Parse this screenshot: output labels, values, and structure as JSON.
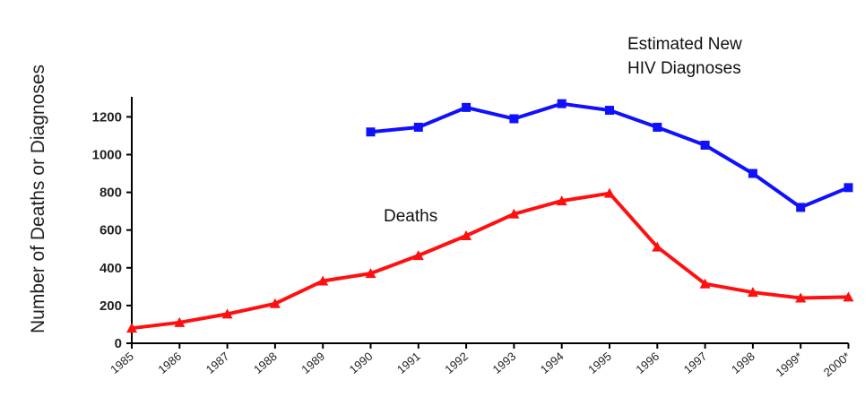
{
  "chart_data": {
    "type": "line",
    "title": "",
    "xlabel": "",
    "ylabel": "Number of Deaths or Diagnoses",
    "ylim": [
      0,
      1300
    ],
    "yticks": [
      0,
      200,
      400,
      600,
      800,
      1000,
      1200
    ],
    "grid": false,
    "categories": [
      "1985",
      "1986",
      "1987",
      "1988",
      "1989",
      "1990",
      "1991",
      "1992",
      "1993",
      "1994",
      "1995",
      "1996",
      "1997",
      "1998",
      "1999*",
      "2000*"
    ],
    "series": [
      {
        "name": "Estimated New HIV Diagnoses",
        "label_lines": [
          "Estimated New",
          "HIV Diagnoses"
        ],
        "color": "#1010ff",
        "marker": "square",
        "values": [
          null,
          null,
          null,
          null,
          null,
          1120,
          1145,
          1250,
          1190,
          1270,
          1235,
          1145,
          1050,
          900,
          720,
          825
        ]
      },
      {
        "name": "Deaths",
        "label_lines": [
          "Deaths"
        ],
        "color": "#ff1010",
        "marker": "triangle",
        "values": [
          80,
          110,
          155,
          210,
          330,
          370,
          465,
          570,
          685,
          755,
          795,
          510,
          315,
          270,
          240,
          245
        ]
      }
    ]
  }
}
